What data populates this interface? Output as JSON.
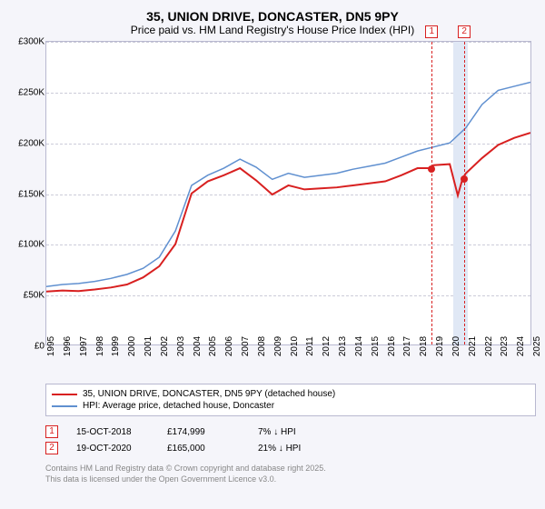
{
  "title": "35, UNION DRIVE, DONCASTER, DN5 9PY",
  "subtitle": "Price paid vs. HM Land Registry's House Price Index (HPI)",
  "chart": {
    "type": "line",
    "xlim": [
      1995,
      2025
    ],
    "ylim": [
      0,
      300000
    ],
    "ytick_step": 50000,
    "yticks": [
      "£0",
      "£50K",
      "£100K",
      "£150K",
      "£200K",
      "£250K",
      "£300K"
    ],
    "xticks": [
      1995,
      1996,
      1997,
      1998,
      1999,
      2000,
      2001,
      2002,
      2003,
      2004,
      2005,
      2006,
      2007,
      2008,
      2009,
      2010,
      2011,
      2012,
      2013,
      2014,
      2015,
      2016,
      2017,
      2018,
      2019,
      2020,
      2021,
      2022,
      2023,
      2024,
      2025
    ],
    "background_color": "#ffffff",
    "grid_color": "#ccccd9",
    "border_color": "#b8b8d0",
    "shaded_band": {
      "x_start": 2020.1,
      "x_end": 2021.0,
      "color": "#e0e8f5"
    },
    "series": [
      {
        "name": "price_paid",
        "label": "35, UNION DRIVE, DONCASTER, DN5 9PY (detached house)",
        "color": "#d82020",
        "line_width": 2,
        "data": [
          [
            1995,
            53000
          ],
          [
            1996,
            54000
          ],
          [
            1997,
            53500
          ],
          [
            1998,
            55000
          ],
          [
            1999,
            57000
          ],
          [
            2000,
            60000
          ],
          [
            2001,
            67000
          ],
          [
            2002,
            78000
          ],
          [
            2003,
            100000
          ],
          [
            2004,
            150000
          ],
          [
            2005,
            162000
          ],
          [
            2006,
            168000
          ],
          [
            2007,
            175000
          ],
          [
            2008,
            163000
          ],
          [
            2009,
            149000
          ],
          [
            2010,
            158000
          ],
          [
            2011,
            154000
          ],
          [
            2012,
            155000
          ],
          [
            2013,
            156000
          ],
          [
            2014,
            158000
          ],
          [
            2015,
            160000
          ],
          [
            2016,
            162000
          ],
          [
            2017,
            168000
          ],
          [
            2018,
            175000
          ],
          [
            2018.79,
            174999
          ],
          [
            2019,
            178000
          ],
          [
            2020,
            179000
          ],
          [
            2020.5,
            148000
          ],
          [
            2020.8,
            165000
          ],
          [
            2021,
            170000
          ],
          [
            2022,
            185000
          ],
          [
            2023,
            198000
          ],
          [
            2024,
            205000
          ],
          [
            2025,
            210000
          ]
        ]
      },
      {
        "name": "hpi",
        "label": "HPI: Average price, detached house, Doncaster",
        "color": "#6090d0",
        "line_width": 1.5,
        "data": [
          [
            1995,
            58000
          ],
          [
            1996,
            60000
          ],
          [
            1997,
            61000
          ],
          [
            1998,
            63000
          ],
          [
            1999,
            66000
          ],
          [
            2000,
            70000
          ],
          [
            2001,
            76000
          ],
          [
            2002,
            87000
          ],
          [
            2003,
            113000
          ],
          [
            2004,
            158000
          ],
          [
            2005,
            168000
          ],
          [
            2006,
            175000
          ],
          [
            2007,
            184000
          ],
          [
            2008,
            176000
          ],
          [
            2009,
            164000
          ],
          [
            2010,
            170000
          ],
          [
            2011,
            166000
          ],
          [
            2012,
            168000
          ],
          [
            2013,
            170000
          ],
          [
            2014,
            174000
          ],
          [
            2015,
            177000
          ],
          [
            2016,
            180000
          ],
          [
            2017,
            186000
          ],
          [
            2018,
            192000
          ],
          [
            2019,
            196000
          ],
          [
            2020,
            200000
          ],
          [
            2021,
            215000
          ],
          [
            2022,
            238000
          ],
          [
            2023,
            252000
          ],
          [
            2024,
            256000
          ],
          [
            2025,
            260000
          ]
        ]
      }
    ],
    "markers": [
      {
        "num": "1",
        "x": 2018.79,
        "y": 174999,
        "color": "#d82020"
      },
      {
        "num": "2",
        "x": 2020.8,
        "y": 165000,
        "color": "#d82020"
      }
    ]
  },
  "legend": {
    "items": [
      {
        "color": "#d82020",
        "label": "35, UNION DRIVE, DONCASTER, DN5 9PY (detached house)"
      },
      {
        "color": "#6090d0",
        "label": "HPI: Average price, detached house, Doncaster"
      }
    ]
  },
  "sales": [
    {
      "num": "1",
      "color": "#d82020",
      "date": "15-OCT-2018",
      "price": "£174,999",
      "delta": "7% ↓ HPI"
    },
    {
      "num": "2",
      "color": "#d82020",
      "date": "19-OCT-2020",
      "price": "£165,000",
      "delta": "21% ↓ HPI"
    }
  ],
  "footer": {
    "line1": "Contains HM Land Registry data © Crown copyright and database right 2025.",
    "line2": "This data is licensed under the Open Government Licence v3.0."
  }
}
